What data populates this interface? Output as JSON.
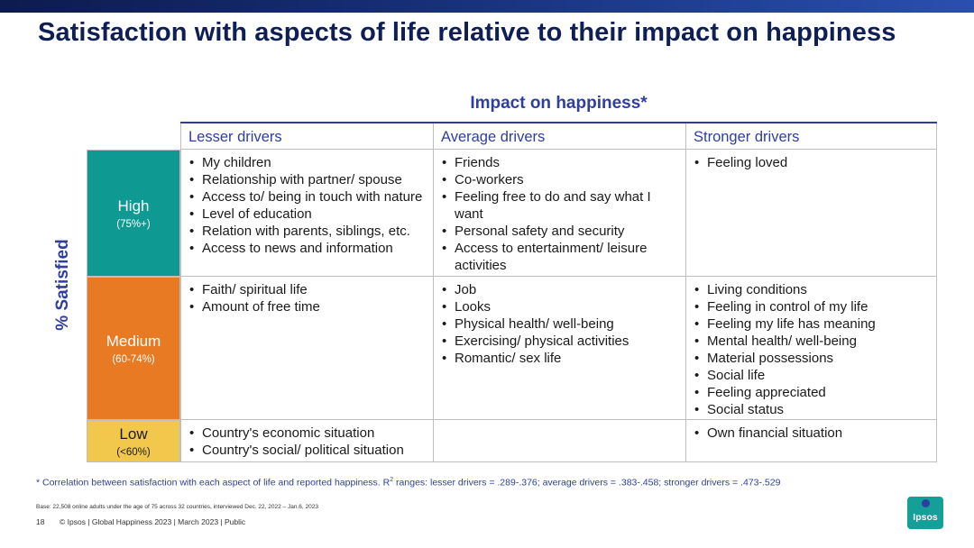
{
  "title": "Satisfaction with aspects of life relative to their impact on happiness",
  "impact_title": "Impact on happiness*",
  "y_label": "% Satisfied",
  "columns": [
    "Lesser drivers",
    "Average drivers",
    "Stronger drivers"
  ],
  "rows": [
    {
      "level": "High",
      "range": "(75%+)"
    },
    {
      "level": "Medium",
      "range": "(60-74%)"
    },
    {
      "level": "Low",
      "range": "(<60%)"
    }
  ],
  "cells": {
    "high": {
      "lesser": [
        "My children",
        "Relationship with partner/ spouse",
        "Access to/ being in touch with nature",
        "Level of education",
        "Relation with parents, siblings, etc.",
        "Access to news and information"
      ],
      "average": [
        "Friends",
        "Co-workers",
        "Feeling free to do and say what I want",
        "Personal safety and security",
        "Access to entertainment/ leisure activities"
      ],
      "stronger": [
        "Feeling loved"
      ]
    },
    "medium": {
      "lesser": [
        "Faith/ spiritual life",
        "Amount of free time"
      ],
      "average": [
        "Job",
        "Looks",
        "Physical health/ well-being",
        "Exercising/ physical activities",
        "Romantic/ sex life"
      ],
      "stronger": [
        "Living conditions",
        "Feeling in control of my life",
        "Feeling my life has meaning",
        "Mental health/ well-being",
        "Material possessions",
        "Social life",
        "Feeling appreciated",
        "Social status"
      ]
    },
    "low": {
      "lesser": [
        "Country's economic situation",
        "Country's social/ political situation"
      ],
      "average": [],
      "stronger": [
        "Own financial situation"
      ]
    }
  },
  "footnote": {
    "before": "* Correlation between satisfaction with each aspect of life and reported happiness. R",
    "sup": "2",
    "after": " ranges: lesser drivers = .289-.376; average drivers = .383-.458; stronger drivers = .473-.529"
  },
  "base": "Base: 22,508 online adults under the age of 75 across 32 countries, interviewed Dec. 22, 2022 – Jan.6, 2023",
  "page_number": "18",
  "copyright": "© Ipsos | Global Happiness 2023 | March 2023 | Public",
  "logo_text": "Ipsos",
  "colors": {
    "navy": "#0f1f55",
    "blue": "#2e3f9e",
    "teal": "#0e9a92",
    "orange": "#e77a22",
    "yellow": "#f2c84c"
  }
}
